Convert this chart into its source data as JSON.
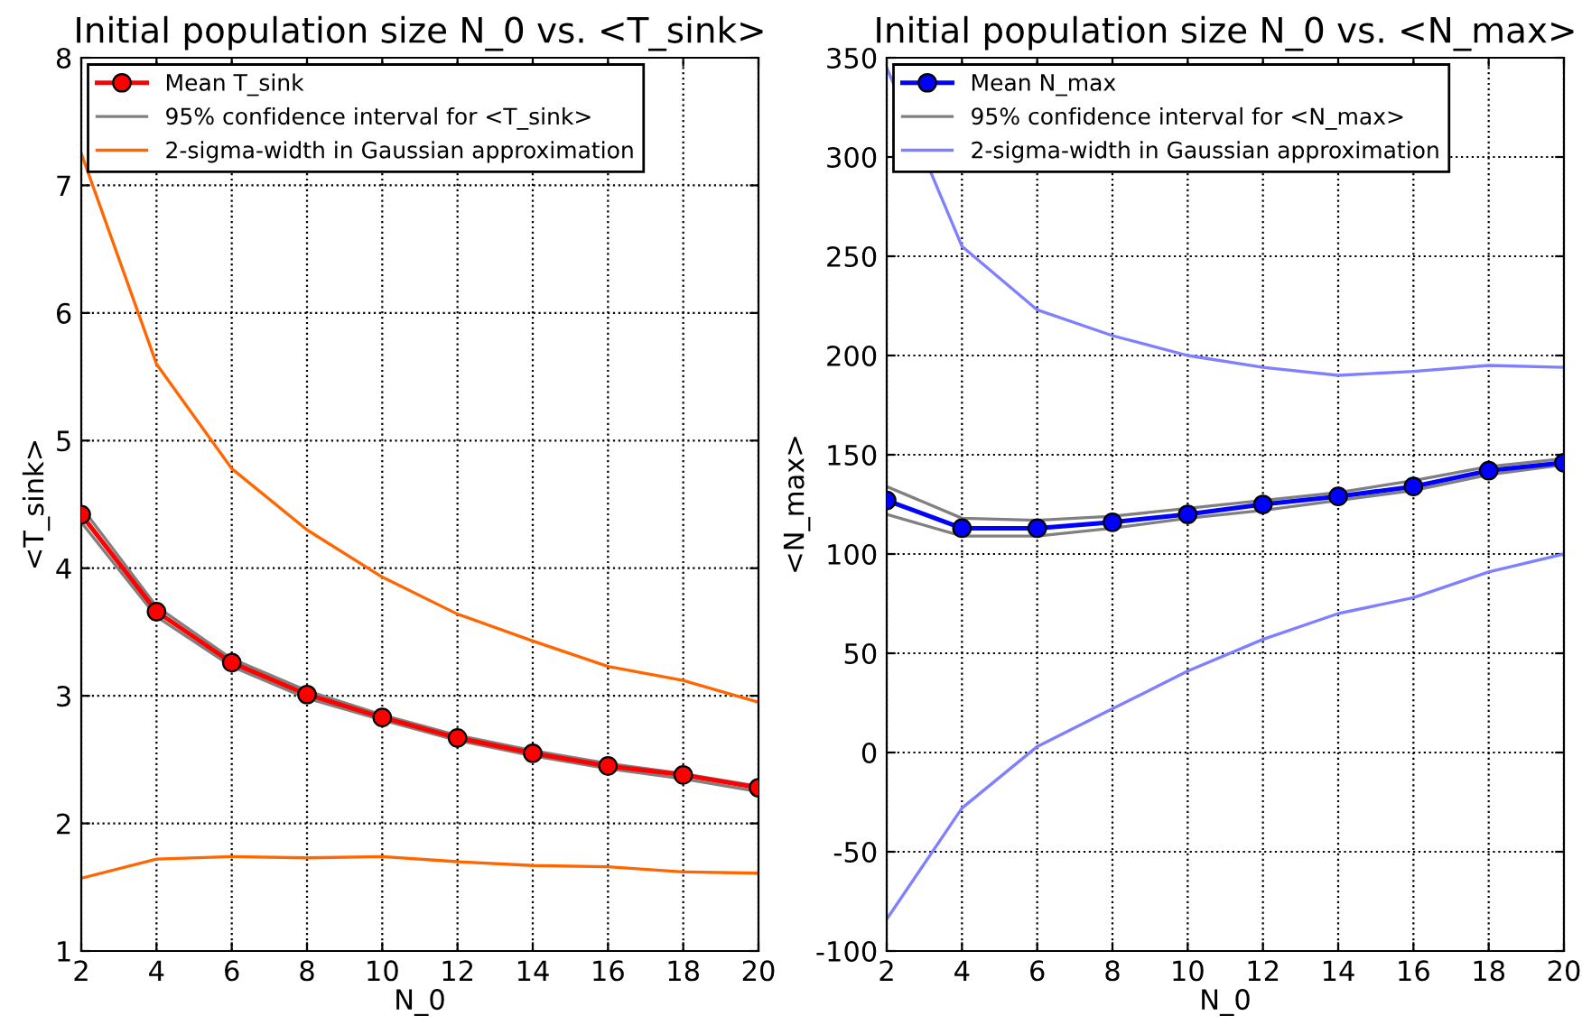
{
  "chart_data": [
    {
      "type": "line",
      "title": "Initial population size N_0 vs. <T_sink>",
      "xlabel": "N_0",
      "ylabel": "<T_sink>",
      "x": [
        2,
        4,
        6,
        8,
        10,
        12,
        14,
        16,
        18,
        20
      ],
      "xlim": [
        2,
        20
      ],
      "xticks": [
        2,
        4,
        6,
        8,
        10,
        12,
        14,
        16,
        18,
        20
      ],
      "ylim": [
        1,
        8
      ],
      "yticks": [
        1,
        2,
        3,
        4,
        5,
        6,
        7,
        8
      ],
      "grid": true,
      "legend": "top left",
      "line_style": "solid",
      "series": [
        {
          "name": "Mean T_sink",
          "color": "#ff0000",
          "marker": "circle",
          "values": [
            4.42,
            3.66,
            3.26,
            3.01,
            2.83,
            2.67,
            2.55,
            2.45,
            2.38,
            2.28
          ]
        },
        {
          "name": "95% confidence interval for <T_sink>",
          "color": "#808080",
          "values": [
            4.48,
            3.7,
            3.29,
            3.04,
            2.85,
            2.69,
            2.57,
            2.47,
            2.39,
            2.29
          ]
        },
        {
          "color": "#808080",
          "values": [
            4.36,
            3.62,
            3.23,
            2.98,
            2.81,
            2.65,
            2.53,
            2.43,
            2.35,
            2.25
          ]
        },
        {
          "name": "2-sigma-width in Gaussian approximation",
          "color": "#ff6600",
          "values": [
            7.25,
            5.6,
            4.78,
            4.3,
            3.93,
            3.64,
            3.43,
            3.23,
            3.12,
            2.95
          ]
        },
        {
          "color": "#ff6600",
          "values": [
            1.57,
            1.72,
            1.74,
            1.73,
            1.74,
            1.7,
            1.67,
            1.66,
            1.62,
            1.61
          ]
        }
      ]
    },
    {
      "type": "line",
      "title": "Initial population size N_0 vs. <N_max>",
      "xlabel": "N_0",
      "ylabel": "<N_max>",
      "x": [
        2,
        4,
        6,
        8,
        10,
        12,
        14,
        16,
        18,
        20
      ],
      "xlim": [
        2,
        20
      ],
      "xticks": [
        2,
        4,
        6,
        8,
        10,
        12,
        14,
        16,
        18,
        20
      ],
      "ylim": [
        -100,
        350
      ],
      "yticks": [
        -100,
        -50,
        0,
        50,
        100,
        150,
        200,
        250,
        300,
        350
      ],
      "grid": true,
      "legend": "top left",
      "line_style": "solid",
      "series": [
        {
          "name": "Mean N_max",
          "color": "#0000ff",
          "marker": "circle",
          "values": [
            127,
            113,
            113,
            116,
            120,
            125,
            129,
            134,
            142,
            146
          ]
        },
        {
          "name": "95% confidence interval for <N_max>",
          "color": "#808080",
          "values": [
            134,
            118,
            117,
            119,
            123,
            127,
            131,
            137,
            144,
            148
          ]
        },
        {
          "color": "#808080",
          "values": [
            120,
            109,
            109,
            113,
            118,
            122,
            127,
            132,
            140,
            145
          ]
        },
        {
          "name": "2-sigma-width in Gaussian approximation",
          "color": "#8080ff",
          "values": [
            345,
            255,
            223,
            210,
            200,
            194,
            190,
            192,
            195,
            194
          ]
        },
        {
          "color": "#8080ff",
          "values": [
            -84,
            -28,
            3,
            22,
            41,
            57,
            70,
            78,
            91,
            100
          ]
        }
      ]
    }
  ]
}
